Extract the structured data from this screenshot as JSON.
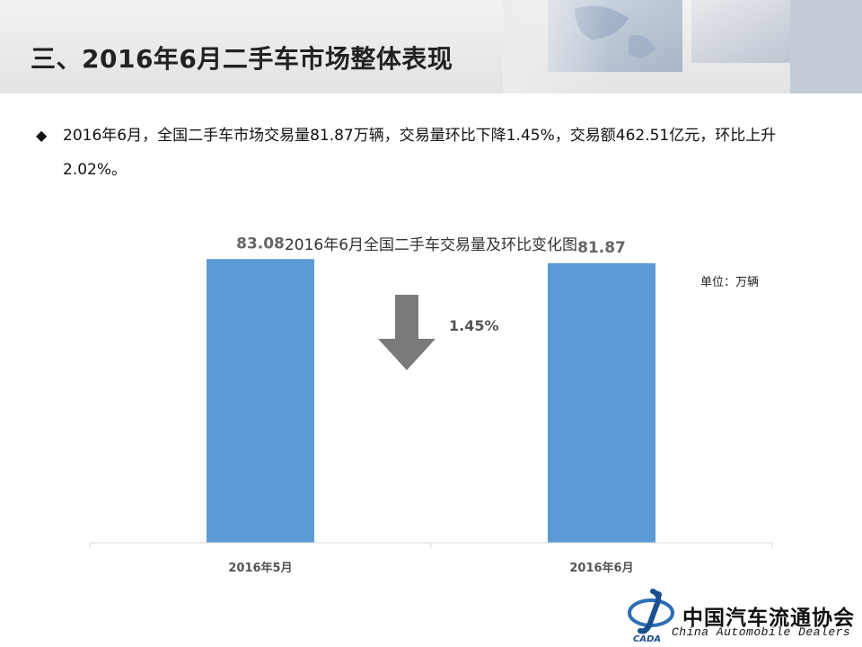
{
  "slide": {
    "title": "三、2016年6月二手车市场整体表现",
    "bullet_symbol": "◆",
    "bullet_text": "2016年6月，全国二手车市场交易量81.87万辆，交易量环比下降1.45%，交易额462.51亿元，环比上升2.02%。"
  },
  "chart": {
    "unit_label": "单位：万辆",
    "change_label": "1.45%",
    "change_direction": "down",
    "arrow_color": "#7a7a7a",
    "bar_color": "#5b9bd5"
  },
  "chart_data": {
    "type": "bar",
    "title": "2016年6月全国二手车交易量及环比变化图",
    "categories": [
      "2016年5月",
      "2016年6月"
    ],
    "values": [
      83.08,
      81.87
    ],
    "value_labels": [
      "83.08",
      "81.87"
    ],
    "xlabel": "",
    "ylabel": "",
    "ylim": [
      0,
      90
    ],
    "grid": false,
    "legend": "none"
  },
  "footer": {
    "org_name_cn": "中国汽车流通协会",
    "org_name_en": "China  Automobile Dealers",
    "logo_text": "CADA"
  }
}
